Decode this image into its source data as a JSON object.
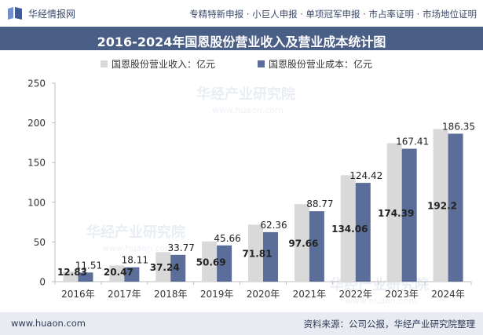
{
  "header": {
    "logo_text": "华经情报网",
    "services_text": "专精特新申报 · 小巨人申报 · 单项冠军申报 · 市占率证明 · 市场地位证明"
  },
  "watermark": {
    "cn": "华经产业研究院",
    "en": "www.huaon.com"
  },
  "footer": {
    "website": "www.huaon.com",
    "source": "资料来源：公司公报，华经产业研究院整理"
  },
  "colors": {
    "revenue": "#d9d9d9",
    "cost": "#5b6e99",
    "title_bar": "#4a5f86"
  },
  "chart_data": {
    "type": "bar",
    "title": "2016-2024年国恩股份营业收入及营业成本统计图",
    "categories": [
      "2016年",
      "2017年",
      "2018年",
      "2019年",
      "2020年",
      "2021年",
      "2022年",
      "2023年",
      "2024年"
    ],
    "series": [
      {
        "name": "国恩股份营业收入：亿元",
        "values": [
          12.83,
          20.47,
          37.24,
          50.69,
          71.81,
          97.66,
          134.06,
          174.39,
          192.2
        ]
      },
      {
        "name": "国恩股份营业成本：亿元",
        "values": [
          11.51,
          18.11,
          33.77,
          45.66,
          62.36,
          88.77,
          124.42,
          167.41,
          186.35
        ]
      }
    ],
    "ylim": [
      0,
      250
    ],
    "yticks": [
      0,
      50,
      100,
      150,
      200,
      250
    ],
    "grid": false,
    "legend_position": "top"
  }
}
